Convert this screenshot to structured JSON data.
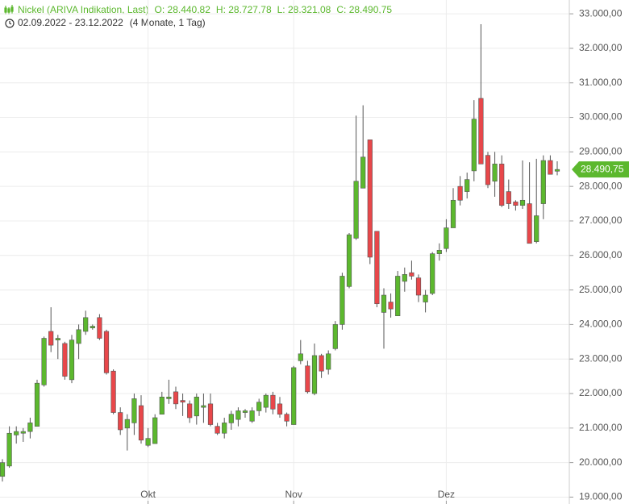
{
  "chart_data": {
    "type": "candlestick",
    "title": "Nickel (ARIVA Indikation, Last)",
    "header_labels": [
      "O: 28.440,82",
      "H: 28.727,78",
      "L: 28.321,08",
      "C: 28.490,75"
    ],
    "subtitle": "02.09.2022 - 23.12.2022",
    "period": "(4 Monate, 1 Tag)",
    "up_color": "#5cb82e",
    "down_color": "#e8474a",
    "grid": true,
    "ylim": [
      18800,
      33400
    ],
    "yticks": [
      {
        "value": 19000,
        "label": "19.000,00"
      },
      {
        "value": 20000,
        "label": "20.000,00"
      },
      {
        "value": 21000,
        "label": "21.000,00"
      },
      {
        "value": 22000,
        "label": "22.000,00"
      },
      {
        "value": 23000,
        "label": "23.000,00"
      },
      {
        "value": 24000,
        "label": "24.000,00"
      },
      {
        "value": 25000,
        "label": "25.000,00"
      },
      {
        "value": 26000,
        "label": "26.000,00"
      },
      {
        "value": 27000,
        "label": "27.000,00"
      },
      {
        "value": 28000,
        "label": "28.000,00"
      },
      {
        "value": 29000,
        "label": "29.000,00"
      },
      {
        "value": 30000,
        "label": "30.000,00"
      },
      {
        "value": 31000,
        "label": "31.000,00"
      },
      {
        "value": 32000,
        "label": "32.000,00"
      },
      {
        "value": 33000,
        "label": "33.000,00"
      }
    ],
    "categories": [
      null,
      null,
      null,
      null,
      null,
      null,
      null,
      null,
      null,
      null,
      null,
      null,
      null,
      null,
      null,
      null,
      null,
      null,
      null,
      null,
      null,
      "Okt",
      null,
      null,
      null,
      null,
      null,
      null,
      null,
      null,
      null,
      null,
      null,
      null,
      null,
      null,
      null,
      null,
      null,
      null,
      null,
      null,
      "Nov",
      null,
      null,
      null,
      null,
      null,
      null,
      null,
      null,
      null,
      null,
      null,
      null,
      null,
      null,
      null,
      null,
      null,
      null,
      null,
      null,
      null,
      "Dez",
      null,
      null,
      null,
      null,
      null,
      null,
      null,
      null,
      null,
      null,
      null,
      null,
      null,
      null,
      null,
      null
    ],
    "open": [
      19600,
      19900,
      20800,
      20850,
      20900,
      21050,
      22250,
      23800,
      23550,
      23450,
      22400,
      23450,
      23800,
      23900,
      24200,
      23800,
      22650,
      21450,
      21000,
      21150,
      21650,
      20500,
      20550,
      21400,
      21850,
      22050,
      21800,
      21700,
      21350,
      21600,
      21700,
      21050,
      20850,
      21150,
      21250,
      21450,
      21200,
      21500,
      21600,
      21950,
      21700,
      21400,
      21100,
      22950,
      22800,
      22000,
      23100,
      22700,
      23300,
      24000,
      25100,
      26500,
      27950,
      29350,
      26700,
      24350,
      24650,
      24250,
      25250,
      25500,
      25350,
      24650,
      24900,
      26050,
      26200,
      26800,
      28000,
      27850,
      28450,
      30550,
      28900,
      28150,
      28650,
      27850,
      27550,
      27450,
      27500,
      26400,
      27500,
      28750,
      28440.82
    ],
    "high": [
      20100,
      21050,
      21050,
      21000,
      21300,
      22400,
      23650,
      24500,
      23700,
      23500,
      23700,
      24000,
      24400,
      24000,
      24300,
      23850,
      22700,
      21600,
      21400,
      22000,
      21950,
      21000,
      21400,
      22050,
      22400,
      22200,
      22000,
      21800,
      22000,
      22000,
      22000,
      21150,
      21300,
      21500,
      21600,
      21550,
      21600,
      21850,
      22000,
      22050,
      21900,
      21450,
      22800,
      23550,
      22950,
      23450,
      23150,
      23250,
      24100,
      25500,
      26650,
      30050,
      30350,
      29350,
      26700,
      25050,
      24900,
      25550,
      25650,
      25850,
      25450,
      25000,
      26100,
      26350,
      27050,
      27950,
      28300,
      28400,
      30500,
      32700,
      29000,
      29000,
      28900,
      28200,
      27600,
      28750,
      28700,
      28800,
      28900,
      28900,
      28727.78
    ],
    "low": [
      19450,
      19850,
      20550,
      20600,
      20700,
      21050,
      22200,
      23200,
      23000,
      22400,
      22300,
      23000,
      23700,
      23850,
      23550,
      22550,
      21400,
      20800,
      20350,
      20800,
      20550,
      20450,
      20550,
      21400,
      21700,
      21550,
      21350,
      21150,
      21100,
      21150,
      21050,
      20800,
      20700,
      20950,
      21050,
      21300,
      21150,
      21350,
      21450,
      21400,
      21300,
      21050,
      21100,
      22850,
      22000,
      21950,
      22450,
      22550,
      23250,
      23850,
      25050,
      26450,
      27950,
      25750,
      24500,
      23300,
      24200,
      24250,
      24950,
      25300,
      24650,
      24350,
      24850,
      25850,
      26100,
      26800,
      27450,
      27650,
      28150,
      28650,
      27950,
      27700,
      27400,
      27350,
      27300,
      27350,
      26350,
      26350,
      27050,
      28350,
      28321.08
    ],
    "close": [
      20000,
      20850,
      20900,
      20900,
      21150,
      22300,
      23600,
      23400,
      23600,
      22500,
      23550,
      23850,
      24200,
      23950,
      23600,
      22600,
      21450,
      20950,
      21250,
      21850,
      20650,
      20700,
      21300,
      21900,
      21900,
      21700,
      21750,
      21300,
      21900,
      21650,
      21100,
      20850,
      21150,
      21400,
      21500,
      21500,
      21500,
      21750,
      21950,
      21550,
      21400,
      21200,
      22750,
      23150,
      22050,
      23100,
      22650,
      23150,
      24000,
      25400,
      26600,
      28150,
      28850,
      25950,
      24600,
      24850,
      24450,
      25400,
      25450,
      25400,
      24850,
      24850,
      26050,
      26150,
      26800,
      27600,
      27600,
      28200,
      29950,
      28650,
      28050,
      28650,
      27450,
      27500,
      27450,
      27600,
      26350,
      27150,
      28750,
      28350,
      28490.75
    ],
    "close_labels": {
      "80": "28.490,75"
    }
  }
}
